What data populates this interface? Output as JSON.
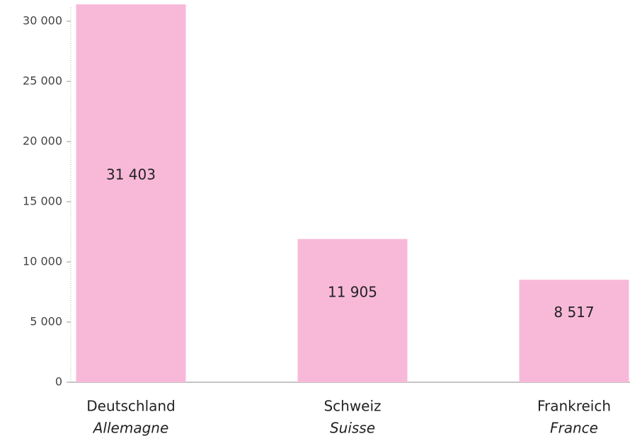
{
  "chart_data": {
    "type": "bar",
    "categories": [
      "Deutschland",
      "Schweiz",
      "Frankreich"
    ],
    "category_translations": [
      "Allemagne",
      "Suisse",
      "France"
    ],
    "values": [
      31403,
      11905,
      8517
    ],
    "value_labels": [
      "31 403",
      "11 905",
      "8 517"
    ],
    "color": "#f8b9d9",
    "ylim": [
      0,
      30000
    ],
    "yticks": [
      0,
      {
        "value": 5000,
        "label": "5 000"
      },
      {
        "value": 10000,
        "label": "10 000"
      },
      {
        "value": 15000,
        "label": "15 000"
      },
      {
        "value": 20000,
        "label": "20 000"
      },
      {
        "value": 25000,
        "label": "25 000"
      },
      {
        "value": 30000,
        "label": "30 000"
      }
    ],
    "grid": false
  }
}
